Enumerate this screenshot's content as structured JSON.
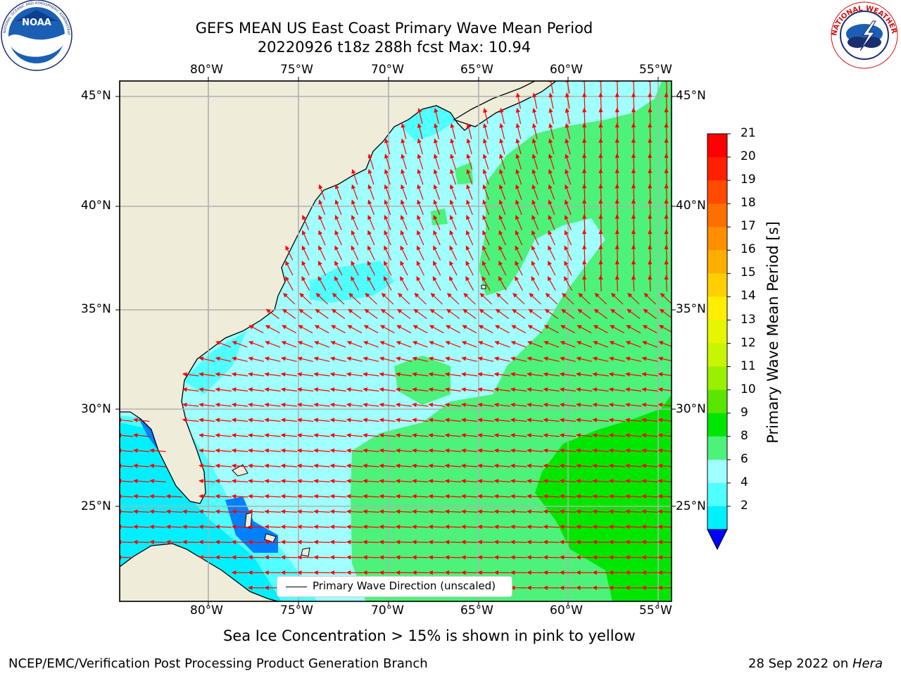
{
  "title": {
    "line1": "GEFS MEAN US East Coast Primary Wave Mean Period",
    "line2": "20220926 t18z 288h fcst   Max: 10.94"
  },
  "logos": {
    "left": {
      "text": "NOAA",
      "ring": "NATIONAL OCEANIC AND ATMOSPHERIC ADMINISTRATION · U.S. DEPARTMENT OF COMMERCE"
    },
    "right": {
      "ring": "NATIONAL WEATHER SERVICE"
    }
  },
  "map": {
    "lon_ticks": [
      "80°W",
      "75°W",
      "70°W",
      "65°W",
      "60°W",
      "55°W"
    ],
    "lat_ticks": [
      "45°N",
      "40°N",
      "35°N",
      "30°N",
      "25°N"
    ],
    "legend_label": "Primary Wave Direction (unscaled)",
    "colors": {
      "land": "#efecd9",
      "grid": "#b0b0b0",
      "arrow": "#ff0000",
      "coast": "#000000"
    }
  },
  "colorbar": {
    "label": "Primary Wave Mean Period [s]",
    "ticks": [
      "21",
      "20",
      "19",
      "18",
      "17",
      "16",
      "15",
      "14",
      "13",
      "12",
      "11",
      "10",
      "9",
      "8",
      "6",
      "4",
      "2"
    ],
    "colors": [
      "#ff0000",
      "#ff2000",
      "#ff4a00",
      "#ff6f00",
      "#ff8f00",
      "#ffae00",
      "#ffcf00",
      "#ffee00",
      "#e6f500",
      "#c8f500",
      "#9af000",
      "#5ae600",
      "#00e600",
      "#4cf27a",
      "#a0ffff",
      "#50ffff",
      "#00f0ff",
      "#0080ff"
    ],
    "under_color": "#0000ff"
  },
  "notes": {
    "sea_ice": "Sea Ice Concentration > 15% is shown in pink to yellow",
    "branch": "NCEP/EMC/Verification Post Processing Product Generation Branch",
    "date": "28 Sep 2022 on ",
    "host": "Hera"
  }
}
